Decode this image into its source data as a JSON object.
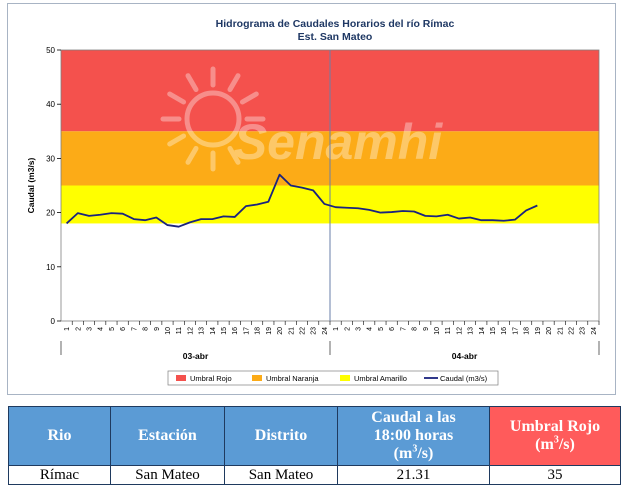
{
  "chart_data": {
    "type": "line",
    "title": "Hidrograma de Caudales Horarios del río Rímac",
    "subtitle": "Est. San Mateo",
    "ylabel": "Caudal  (m3/s)",
    "xlabel": "",
    "ylim": [
      0,
      50
    ],
    "yticks": [
      "0",
      "10",
      "20",
      "30",
      "40",
      "50"
    ],
    "hour_ticks": [
      "1",
      "2",
      "3",
      "4",
      "5",
      "6",
      "7",
      "8",
      "9",
      "10",
      "11",
      "12",
      "13",
      "14",
      "15",
      "16",
      "17",
      "18",
      "19",
      "20",
      "21",
      "22",
      "23",
      "24"
    ],
    "day_labels": [
      "03-abr",
      "04-abr"
    ],
    "watermark": "Senamhi",
    "bands": [
      {
        "name": "Umbral Rojo",
        "from": 35,
        "to": 50,
        "color": "#f4514d"
      },
      {
        "name": "Umbral Naranja",
        "from": 25,
        "to": 35,
        "color": "#fcab17"
      },
      {
        "name": "Umbral Amarillo",
        "from": 18,
        "to": 25,
        "color": "#ffff00"
      }
    ],
    "series": [
      {
        "name": "Caudal (m3/s)",
        "color": "#1a237e",
        "values": [
          18.0,
          19.9,
          19.4,
          19.6,
          19.9,
          19.8,
          18.8,
          18.6,
          19.1,
          17.7,
          17.4,
          18.2,
          18.8,
          18.8,
          19.3,
          19.2,
          21.2,
          21.5,
          22.0,
          27.0,
          25.0,
          24.6,
          24.1,
          21.6,
          21.0,
          20.9,
          20.8,
          20.5,
          20.0,
          20.1,
          20.3,
          20.2,
          19.4,
          19.3,
          19.6,
          18.9,
          19.1,
          18.6,
          18.6,
          18.5,
          18.7,
          20.4,
          21.31
        ]
      }
    ],
    "legend": [
      "Umbral Rojo",
      "Umbral Naranja",
      "Umbral Amarillo",
      "Caudal (m3/s)"
    ],
    "legend_position": "bottom"
  },
  "table": {
    "headers": {
      "rio": "Rio",
      "estacion": "Estación",
      "distrito": "Distrito",
      "caudal_line1": "Caudal a las",
      "caudal_line2": "18:00 horas",
      "caudal_unit_pre": "(m",
      "caudal_unit_sup": "3",
      "caudal_unit_post": "/s)",
      "umbral_line1": "Umbral Rojo",
      "umbral_unit_pre": "(m",
      "umbral_unit_sup": "3",
      "umbral_unit_post": "/s)"
    },
    "row": {
      "rio": "Rímac",
      "estacion": "San Mateo",
      "distrito": "San Mateo",
      "caudal": "21.31",
      "umbral": "35"
    }
  }
}
